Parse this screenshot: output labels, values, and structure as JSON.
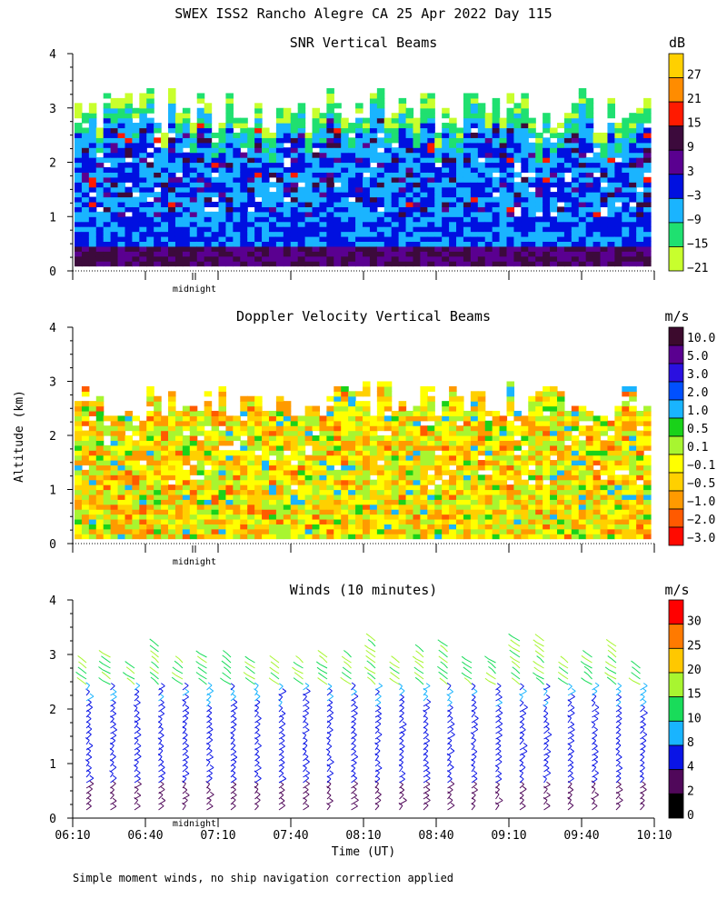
{
  "title": "SWEX ISS2 Rancho Alegre CA  25 Apr 2022 Day 115",
  "ylabel": "Altitude (km)",
  "xlabel": "Time (UT)",
  "footnote": "Simple moment winds, no ship navigation correction applied",
  "midnight_label": "midnight",
  "chart_data": [
    {
      "type": "heatmap",
      "title": "SNR Vertical Beams",
      "unit": "dB",
      "ylim": [
        0,
        4
      ],
      "yticks": [
        "0",
        "1",
        "2",
        "3",
        "4"
      ],
      "colorbar": {
        "labels": [
          "27",
          "21",
          "15",
          "9",
          "3",
          "−3",
          "−9",
          "−15",
          "−21"
        ],
        "colors": [
          "#ffd000",
          "#ff8c00",
          "#ff1a00",
          "#3c0a3c",
          "#5a0090",
          "#0010e0",
          "#1ab4ff",
          "#1fe070",
          "#c8ff2d"
        ]
      }
    },
    {
      "type": "heatmap",
      "title": "Doppler Velocity Vertical Beams",
      "unit": "m/s",
      "ylim": [
        0,
        4
      ],
      "yticks": [
        "0",
        "1",
        "2",
        "3",
        "4"
      ],
      "colorbar": {
        "labels": [
          "10.0",
          "5.0",
          "3.0",
          "2.0",
          "1.0",
          "0.5",
          "0.1",
          "−0.1",
          "−0.5",
          "−1.0",
          "−2.0",
          "−3.0"
        ],
        "colors": [
          "#3c0a2d",
          "#5a0090",
          "#2a10e0",
          "#0050ff",
          "#19b4ff",
          "#19d219",
          "#a8f530",
          "#ffff00",
          "#ffd000",
          "#ff9a00",
          "#ff5a00",
          "#ff0a00"
        ]
      }
    },
    {
      "type": "wind_barbs",
      "title": "Winds (10 minutes)",
      "unit": "m/s",
      "ylim": [
        0,
        4
      ],
      "yticks": [
        "0",
        "1",
        "2",
        "3",
        "4"
      ],
      "xticks": [
        "06:10",
        "06:40",
        "07:10",
        "07:40",
        "08:10",
        "08:40",
        "09:10",
        "09:40",
        "10:10"
      ],
      "colorbar": {
        "labels": [
          "30",
          "25",
          "20",
          "15",
          "10",
          "8",
          "4",
          "2",
          "0"
        ],
        "colors": [
          "#ff0000",
          "#ff7a00",
          "#ffc800",
          "#a8f530",
          "#19dc5a",
          "#19b4ff",
          "#0a14e6",
          "#50085a",
          "#000000"
        ]
      }
    }
  ]
}
